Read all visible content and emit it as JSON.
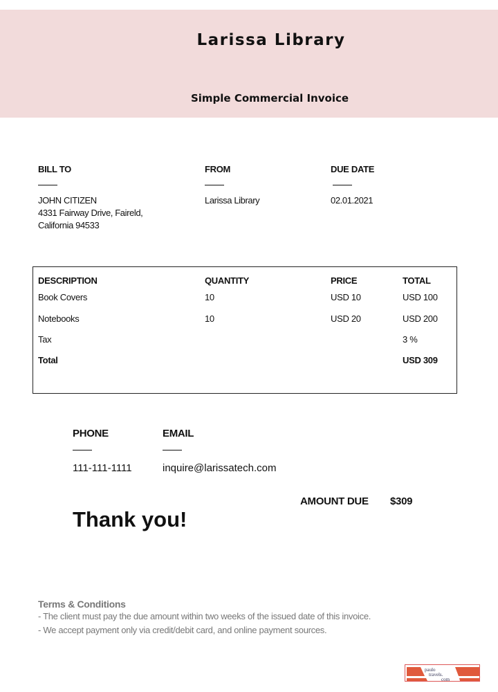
{
  "header": {
    "title": "Larissa Library",
    "subtitle": "Simple Commercial Invoice",
    "bg_color": "#f2dbdb"
  },
  "bill_to": {
    "label": "BILL TO",
    "name": "JOHN CITIZEN",
    "address1": "4331 Fairway Drive, Faireld,",
    "address2": "California 94533"
  },
  "from": {
    "label": "FROM",
    "name": "Larissa Library"
  },
  "due_date": {
    "label": "DUE DATE",
    "value": "02.01.2021"
  },
  "table": {
    "headers": [
      "DESCRIPTION",
      "QUANTITY",
      "PRICE",
      "TOTAL"
    ],
    "rows": [
      [
        "Book Covers",
        "10",
        "USD 10",
        "USD 100"
      ],
      [
        "Notebooks",
        "10",
        "USD 20",
        "USD 200"
      ],
      [
        "Tax",
        "",
        "",
        "3 %"
      ],
      [
        "Total",
        "",
        "",
        "USD 309"
      ]
    ]
  },
  "contact": {
    "phone_label": "PHONE",
    "phone": "111-111-1111",
    "email_label": "EMAIL",
    "email": "inquire@larissatech.com"
  },
  "amount_due": {
    "label": "AMOUNT DUE",
    "value": "$309"
  },
  "thanks": "Thank you!",
  "terms": {
    "title": "Terms & Conditions",
    "lines": [
      "- The client must pay the due amount within two weeks of the issued date of this invoice.",
      "- We accept payment only via credit/debit card, and online payment sources."
    ]
  },
  "logo": {
    "text": "paulo travels .com",
    "color": "#e05a3c"
  }
}
